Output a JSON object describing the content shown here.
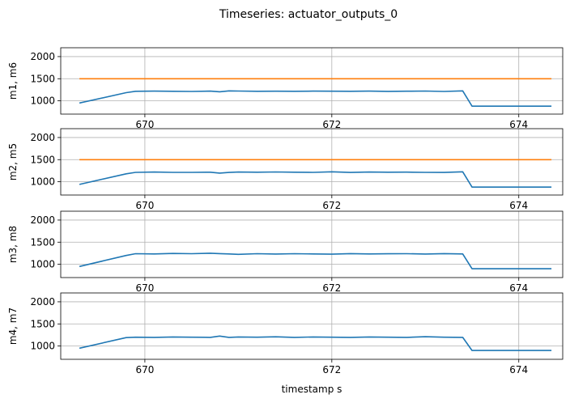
{
  "title": "Timeseries: actuator_outputs_0",
  "xlabel": "timestamp s",
  "colors": {
    "blue": "#1f77b4",
    "orange": "#ff7f0e"
  },
  "chart_data": [
    {
      "type": "line",
      "ylabel": "m1, m6",
      "xlim": [
        669.1,
        674.47
      ],
      "ylim": [
        700,
        2200
      ],
      "xticks": [
        "670",
        "672",
        "674"
      ],
      "yticks": [
        "1000",
        "1500",
        "2000"
      ],
      "grid": true,
      "series": [
        {
          "color": "blue",
          "x": [
            669.3,
            669.8,
            669.9,
            670.1,
            670.3,
            670.5,
            670.7,
            670.8,
            670.9,
            671.0,
            671.2,
            671.4,
            671.6,
            671.8,
            672.0,
            672.2,
            672.4,
            672.6,
            672.8,
            673.0,
            673.2,
            673.4,
            673.5,
            673.6,
            674.0,
            674.35
          ],
          "y": [
            950,
            1185,
            1215,
            1220,
            1215,
            1212,
            1220,
            1205,
            1225,
            1222,
            1215,
            1218,
            1216,
            1220,
            1218,
            1215,
            1220,
            1214,
            1218,
            1222,
            1212,
            1225,
            880,
            880,
            880,
            880
          ]
        },
        {
          "color": "orange",
          "x": [
            669.3,
            674.35
          ],
          "y": [
            1500,
            1500
          ]
        }
      ]
    },
    {
      "type": "line",
      "ylabel": "m2, m5",
      "xlim": [
        669.1,
        674.47
      ],
      "ylim": [
        700,
        2200
      ],
      "xticks": [
        "670",
        "672",
        "674"
      ],
      "yticks": [
        "1000",
        "1500",
        "2000"
      ],
      "grid": true,
      "series": [
        {
          "color": "blue",
          "x": [
            669.3,
            669.8,
            669.9,
            670.1,
            670.3,
            670.5,
            670.7,
            670.8,
            670.9,
            671.0,
            671.2,
            671.4,
            671.6,
            671.8,
            672.0,
            672.2,
            672.4,
            672.6,
            672.8,
            673.0,
            673.2,
            673.4,
            673.5,
            673.6,
            674.0,
            674.35
          ],
          "y": [
            940,
            1180,
            1212,
            1220,
            1212,
            1212,
            1215,
            1195,
            1210,
            1220,
            1215,
            1222,
            1216,
            1212,
            1225,
            1210,
            1220,
            1215,
            1218,
            1212,
            1210,
            1225,
            880,
            880,
            880,
            880
          ]
        },
        {
          "color": "orange",
          "x": [
            669.3,
            674.35
          ],
          "y": [
            1500,
            1500
          ]
        }
      ]
    },
    {
      "type": "line",
      "ylabel": "m3, m8",
      "xlim": [
        669.1,
        674.47
      ],
      "ylim": [
        700,
        2200
      ],
      "xticks": [
        "670",
        "672",
        "674"
      ],
      "yticks": [
        "1000",
        "1500",
        "2000"
      ],
      "grid": true,
      "series": [
        {
          "color": "blue",
          "x": [
            669.3,
            669.8,
            669.9,
            670.1,
            670.3,
            670.5,
            670.7,
            670.8,
            670.9,
            671.0,
            671.2,
            671.4,
            671.6,
            671.8,
            672.0,
            672.2,
            672.4,
            672.6,
            672.8,
            673.0,
            673.2,
            673.4,
            673.5,
            673.6,
            674.0,
            674.35
          ],
          "y": [
            950,
            1200,
            1240,
            1235,
            1245,
            1240,
            1250,
            1242,
            1235,
            1225,
            1240,
            1232,
            1240,
            1235,
            1228,
            1242,
            1235,
            1238,
            1240,
            1232,
            1242,
            1235,
            900,
            900,
            900,
            900
          ]
        }
      ]
    },
    {
      "type": "line",
      "ylabel": "m4, m7",
      "xlim": [
        669.1,
        674.47
      ],
      "ylim": [
        700,
        2200
      ],
      "xticks": [
        "670",
        "672",
        "674"
      ],
      "yticks": [
        "1000",
        "1500",
        "2000"
      ],
      "grid": true,
      "series": [
        {
          "color": "blue",
          "x": [
            669.3,
            669.8,
            669.9,
            670.1,
            670.3,
            670.5,
            670.7,
            670.8,
            670.9,
            671.0,
            671.2,
            671.4,
            671.6,
            671.8,
            672.0,
            672.2,
            672.4,
            672.6,
            672.8,
            673.0,
            673.2,
            673.4,
            673.5,
            673.6,
            674.0,
            674.35
          ],
          "y": [
            950,
            1190,
            1200,
            1195,
            1205,
            1200,
            1195,
            1225,
            1195,
            1205,
            1200,
            1208,
            1195,
            1205,
            1200,
            1195,
            1205,
            1200,
            1195,
            1210,
            1200,
            1195,
            900,
            900,
            900,
            900
          ]
        }
      ]
    }
  ]
}
